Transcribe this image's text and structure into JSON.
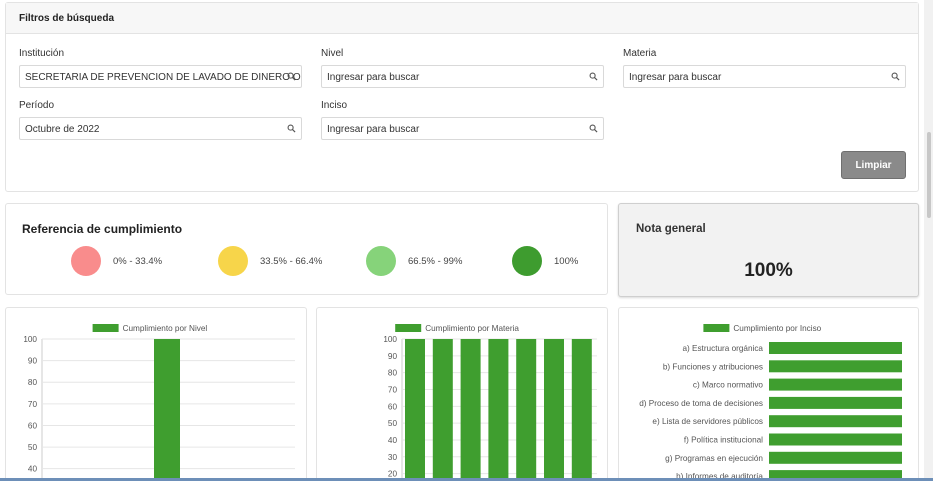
{
  "filters": {
    "title": "Filtros de búsqueda",
    "institucion": {
      "label": "Institución",
      "value": "SECRETARIA DE PREVENCION DE LAVADO DE DINERO O BIE..."
    },
    "nivel": {
      "label": "Nivel",
      "placeholder": "Ingresar para buscar"
    },
    "materia": {
      "label": "Materia",
      "placeholder": "Ingresar para buscar"
    },
    "periodo": {
      "label": "Período",
      "value": "Octubre de 2022"
    },
    "inciso": {
      "label": "Inciso",
      "placeholder": "Ingresar para buscar"
    },
    "clear_label": "Limpiar",
    "search_icon": "search-icon"
  },
  "reference": {
    "title": "Referencia de cumplimiento",
    "items": [
      {
        "label": "0% - 33.4%",
        "color": "#f98c8c"
      },
      {
        "label": "33.5% - 66.4%",
        "color": "#f7d54a"
      },
      {
        "label": "66.5% - 99%",
        "color": "#86d37a"
      },
      {
        "label": "100%",
        "color": "#3e9c2f"
      }
    ]
  },
  "nota_general": {
    "title": "Nota general",
    "value": "100%"
  },
  "colors": {
    "bar": "#3f9e2f",
    "grid": "#e6e6e6"
  },
  "chart_data": [
    {
      "type": "bar",
      "title": "",
      "legend": "Cumplimiento por Nivel",
      "yticks": [
        100,
        90,
        80,
        70,
        60,
        50,
        40
      ],
      "ylim_visible": [
        38,
        100
      ],
      "categories": [
        ""
      ],
      "values": [
        100
      ]
    },
    {
      "type": "bar",
      "title": "",
      "legend": "Cumplimiento por Materia",
      "yticks": [
        100,
        90,
        80,
        70,
        60,
        50,
        40,
        30,
        20
      ],
      "ylim_visible": [
        18,
        100
      ],
      "categories": [
        "",
        "",
        "",
        "",
        "",
        "",
        ""
      ],
      "values": [
        100,
        100,
        100,
        100,
        100,
        100,
        100
      ]
    },
    {
      "type": "bar",
      "orientation": "horizontal",
      "title": "",
      "legend": "Cumplimiento por Inciso",
      "categories": [
        "a) Estructura orgánica",
        "b) Funciones y atribuciones",
        "c) Marco normativo",
        "d) Proceso de toma de decisiones",
        "e) Lista de servidores públicos",
        "f) Política institucional",
        "g) Programas en ejecución",
        "h) Informes de auditoría"
      ],
      "values": [
        100,
        100,
        100,
        100,
        100,
        100,
        100,
        100
      ]
    }
  ]
}
